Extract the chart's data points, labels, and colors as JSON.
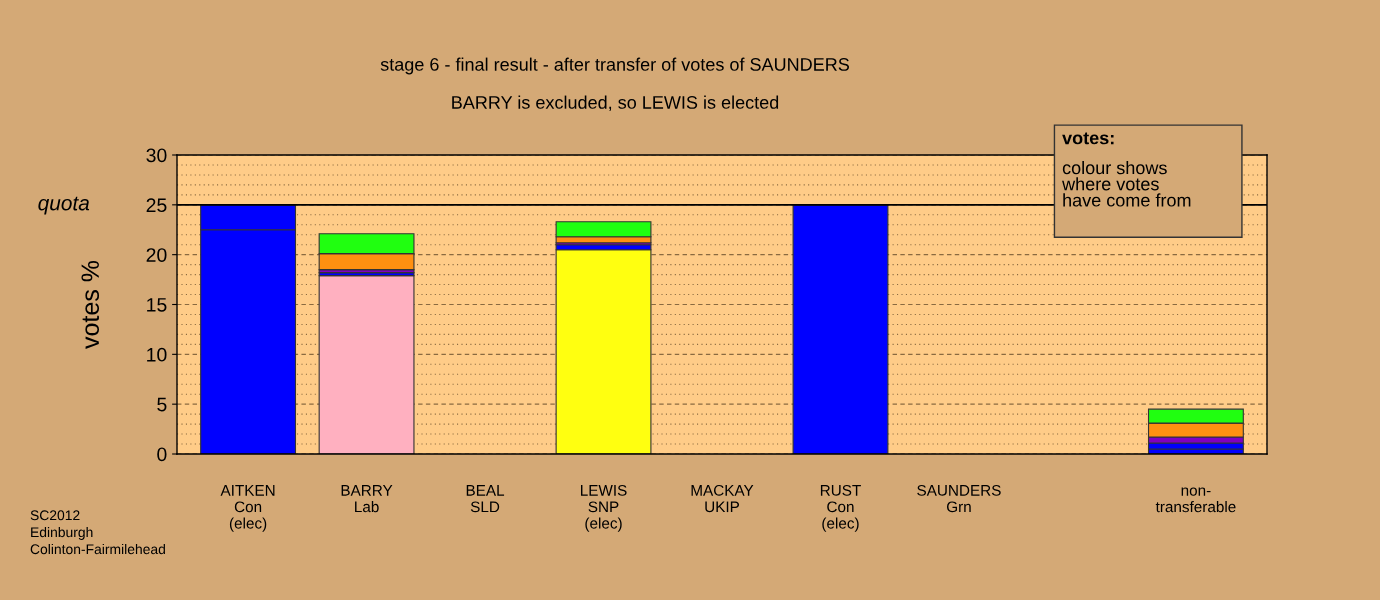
{
  "chart_data": {
    "type": "bar",
    "stacked": true,
    "title": "stage 6 - final result - after transfer of votes of SAUNDERS",
    "subtitle": "BARRY is excluded, so LEWIS is elected",
    "ylabel": "votes %",
    "categories": [
      "AITKEN\nCon\n(elec)",
      "BARRY\nLab",
      "BEAL\nSLD",
      "LEWIS\nSNP\n(elec)",
      "MACKAY\nUKIP",
      "RUST\nCon\n(elec)",
      "SAUNDERS\nGrn",
      null,
      "non-\ntransferable"
    ],
    "series": [
      {
        "colors": [
          "#0000ff",
          "#ffb0c0",
          "#ff9010",
          "#ffff10",
          "#8000c0",
          "#0000ff",
          "#20ff10",
          null,
          "#0000ff"
        ],
        "values": [
          22.5,
          17.9,
          0,
          20.5,
          0,
          25,
          0,
          null,
          0.5
        ]
      },
      {
        "color": "#0000ff",
        "values": [
          2.5,
          0.3,
          0,
          0.5,
          0,
          0,
          0,
          null,
          0.6
        ]
      },
      {
        "color": "#8000c0",
        "values": [
          0,
          0.3,
          0,
          0.2,
          0,
          0,
          0,
          null,
          0.6
        ]
      },
      {
        "color": "#ff9010",
        "values": [
          0,
          1.6,
          0,
          0.6,
          0,
          0,
          0,
          null,
          1.4
        ]
      },
      {
        "color": "#20ff10",
        "values": [
          0,
          2.0,
          0,
          1.5,
          0,
          0,
          0,
          null,
          1.4
        ]
      }
    ],
    "ylim": [
      0,
      30
    ],
    "yticks": [
      0,
      5,
      10,
      15,
      20,
      25,
      30
    ],
    "ref_lines": [
      {
        "axis": "y",
        "value": 25,
        "label": "quota",
        "color": "#000000",
        "line_style": "solid"
      }
    ],
    "grid": "y",
    "annotations": [
      "votes:\ncolour shows\nwhere votes\nhave come from",
      "SC2012\nEdinburgh\nColinton-Fairmilehead"
    ]
  }
}
